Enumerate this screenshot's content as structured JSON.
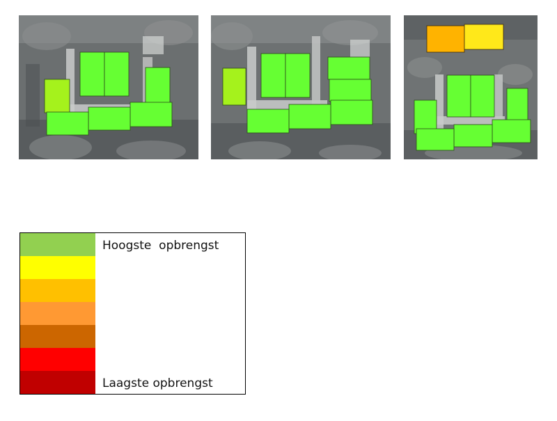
{
  "tiles": [
    {
      "panels": [
        {
          "kind": "roof-segment",
          "level": 2
        },
        {
          "kind": "roof-segment",
          "level": 1
        },
        {
          "kind": "roof-segment",
          "level": 1
        },
        {
          "kind": "roof-segment",
          "level": 1
        },
        {
          "kind": "roof-segment",
          "level": 1
        },
        {
          "kind": "roof-segment",
          "level": 1
        },
        {
          "kind": "roof-segment",
          "level": 1
        },
        {
          "kind": "roof-segment",
          "level": 1
        }
      ]
    },
    {
      "panels": [
        {
          "kind": "roof-segment",
          "level": 2
        },
        {
          "kind": "roof-segment",
          "level": 1
        },
        {
          "kind": "roof-segment",
          "level": 1
        },
        {
          "kind": "roof-segment",
          "level": 1
        },
        {
          "kind": "roof-segment",
          "level": 1
        },
        {
          "kind": "roof-segment",
          "level": 1
        },
        {
          "kind": "roof-segment",
          "level": 1
        },
        {
          "kind": "roof-segment",
          "level": 1
        },
        {
          "kind": "roof-segment",
          "level": 1
        }
      ]
    },
    {
      "panels": [
        {
          "kind": "roof-segment",
          "level": 4
        },
        {
          "kind": "roof-segment",
          "level": 3
        },
        {
          "kind": "roof-segment",
          "level": 1
        },
        {
          "kind": "roof-segment",
          "level": 1
        },
        {
          "kind": "roof-segment",
          "level": 1
        },
        {
          "kind": "roof-segment",
          "level": 1
        },
        {
          "kind": "roof-segment",
          "level": 1
        },
        {
          "kind": "roof-segment",
          "level": 1
        },
        {
          "kind": "roof-segment",
          "level": 1
        }
      ]
    }
  ],
  "panel_colors": {
    "1": "#66ff33",
    "2": "#a5f21c",
    "3": "#ffe81a",
    "4": "#ffb300"
  },
  "legend": {
    "colors": [
      "#92d050",
      "#ffff00",
      "#ffc000",
      "#ff9933",
      "#cc6600",
      "#ff0000",
      "#c00000"
    ],
    "top_label": "Hoogste  opbrengst",
    "bottom_label": "Laagste opbrengst"
  }
}
